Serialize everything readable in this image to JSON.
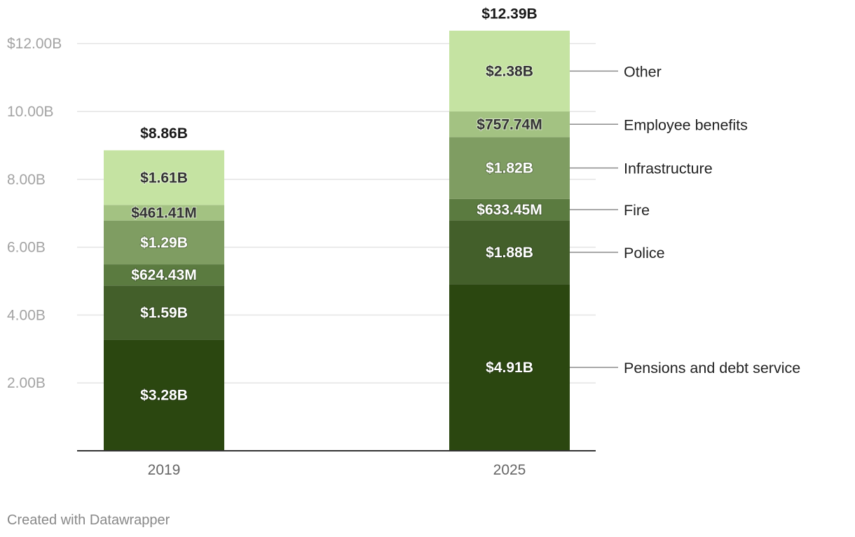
{
  "chart_data": {
    "type": "bar",
    "stacked": true,
    "categories": [
      "2019",
      "2025"
    ],
    "ylim": [
      0,
      12.4
    ],
    "yticks": [
      {
        "value": 2,
        "label": "2.00B"
      },
      {
        "value": 4,
        "label": "4.00B"
      },
      {
        "value": 6,
        "label": "6.00B"
      },
      {
        "value": 8,
        "label": "8.00B"
      },
      {
        "value": 10,
        "label": "10.00B"
      },
      {
        "value": 12,
        "label": "$12.00B"
      }
    ],
    "grid": true,
    "legend": "right, labels connected to 2025 bar segments",
    "series": [
      {
        "name": "Pensions and debt service",
        "color": "#2b4710",
        "text_color": "#ffffff",
        "values": [
          3.28,
          4.91
        ],
        "labels": [
          "$3.28B",
          "$4.91B"
        ]
      },
      {
        "name": "Police",
        "color": "#435f2a",
        "text_color": "#ffffff",
        "values": [
          1.59,
          1.88
        ],
        "labels": [
          "$1.59B",
          "$1.88B"
        ]
      },
      {
        "name": "Fire",
        "color": "#5b7b40",
        "text_color": "#ffffff",
        "values": [
          0.62443,
          0.63345
        ],
        "labels": [
          "$624.43M",
          "$633.45M"
        ]
      },
      {
        "name": "Infrastructure",
        "color": "#7f9d62",
        "text_color": "#ffffff",
        "values": [
          1.29,
          1.82
        ],
        "labels": [
          "$1.29B",
          "$1.82B"
        ]
      },
      {
        "name": "Employee benefits",
        "color": "#a3c282",
        "text_color": "#333333",
        "values": [
          0.46141,
          0.75774
        ],
        "labels": [
          "$461.41M",
          "$757.74M"
        ]
      },
      {
        "name": "Other",
        "color": "#c5e3a2",
        "text_color": "#333333",
        "values": [
          1.61,
          2.38
        ],
        "labels": [
          "$1.61B",
          "$2.38B"
        ]
      }
    ],
    "totals": [
      {
        "value": 8.86,
        "label": "$8.86B"
      },
      {
        "value": 12.39,
        "label": "$12.39B"
      }
    ]
  },
  "footer": {
    "credit": "Created with Datawrapper"
  }
}
